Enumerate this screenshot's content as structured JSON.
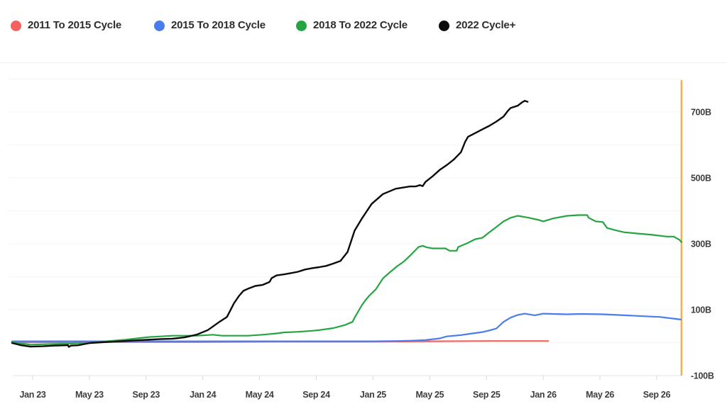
{
  "legend": {
    "position": "top-left",
    "items": [
      {
        "id": "2011-2015",
        "label": "2011 To 2015 Cycle",
        "color": "#f4625d"
      },
      {
        "id": "2015-2018",
        "label": "2015 To 2018 Cycle",
        "color": "#4a7cee"
      },
      {
        "id": "2018-2022",
        "label": "2018 To 2022 Cycle",
        "color": "#25a541"
      },
      {
        "id": "2022-plus",
        "label": "2022 Cycle+",
        "color": "#0b0b0b"
      }
    ]
  },
  "colors": {
    "background": "#ffffff",
    "grid": "#f4f4f4",
    "axis_line": "#e3e3e3",
    "tick_mark": "#d9d9d9",
    "separator": "#ededed",
    "tick_text": "#3d3d3d",
    "legend_text": "#2d2d2d",
    "right_marker_line": "#f8ac52"
  },
  "chart_data": {
    "type": "line",
    "title": "",
    "legend_position": "top",
    "grid": "horizontal-only",
    "x_axis": {
      "unit": "months since Jan 2023",
      "range": [
        -1.45,
        45.75
      ],
      "tick_labels": [
        {
          "t": 0,
          "label": "Jan 23"
        },
        {
          "t": 4,
          "label": "May 23"
        },
        {
          "t": 8,
          "label": "Sep 23"
        },
        {
          "t": 12,
          "label": "Jan 24"
        },
        {
          "t": 16,
          "label": "May 24"
        },
        {
          "t": 20,
          "label": "Sep 24"
        },
        {
          "t": 24,
          "label": "Jan 25"
        },
        {
          "t": 28,
          "label": "May 25"
        },
        {
          "t": 32,
          "label": "Sep 25"
        },
        {
          "t": 36,
          "label": "Jan 26"
        },
        {
          "t": 40,
          "label": "May 26"
        },
        {
          "t": 44,
          "label": "Sep 26"
        }
      ]
    },
    "y_axis": {
      "side": "right",
      "unit": "billions (B)",
      "range": [
        -105,
        843
      ],
      "gridline_values": [
        800,
        700,
        600,
        500,
        400,
        300,
        200,
        100,
        0
      ],
      "tick_labels": [
        {
          "v": 700,
          "label": "700B"
        },
        {
          "v": 500,
          "label": "500B"
        },
        {
          "v": 300,
          "label": "300B"
        },
        {
          "v": 100,
          "label": "100B"
        },
        {
          "v": -100,
          "label": "-100B"
        }
      ]
    },
    "right_marker_line": {
      "t": 45.75,
      "color": "#f8ac52"
    },
    "series": [
      {
        "id": "2011-2015",
        "name": "2011 To 2015 Cycle",
        "color": "#f4625d",
        "points": [
          [
            -1.45,
            0
          ],
          [
            0,
            1
          ],
          [
            6,
            2
          ],
          [
            12,
            2
          ],
          [
            18,
            3
          ],
          [
            24,
            3
          ],
          [
            28,
            4
          ],
          [
            32,
            5
          ],
          [
            36.35,
            5
          ]
        ]
      },
      {
        "id": "2015-2018",
        "name": "2015 To 2018 Cycle",
        "color": "#4a7cee",
        "points": [
          [
            -1.45,
            4
          ],
          [
            4,
            4
          ],
          [
            10,
            4
          ],
          [
            16,
            4
          ],
          [
            20,
            4
          ],
          [
            24,
            4
          ],
          [
            25.7,
            5
          ],
          [
            26.7,
            6
          ],
          [
            27.7,
            8
          ],
          [
            28.7,
            13
          ],
          [
            29.2,
            19
          ],
          [
            30.2,
            23
          ],
          [
            30.7,
            26
          ],
          [
            31.7,
            32
          ],
          [
            32.2,
            37
          ],
          [
            32.7,
            43
          ],
          [
            33.2,
            63
          ],
          [
            33.7,
            76
          ],
          [
            34.2,
            84
          ],
          [
            34.7,
            88
          ],
          [
            35.4,
            83
          ],
          [
            36,
            88
          ],
          [
            36.7,
            87
          ],
          [
            37.7,
            86
          ],
          [
            38.7,
            87
          ],
          [
            40.2,
            86
          ],
          [
            41.2,
            84
          ],
          [
            42.7,
            81
          ],
          [
            43.7,
            79
          ],
          [
            44.2,
            78
          ],
          [
            45.2,
            73
          ],
          [
            45.7,
            70
          ]
        ]
      },
      {
        "id": "2018-2022",
        "name": "2018 To 2022 Cycle",
        "color": "#25a541",
        "points": [
          [
            -1.45,
            1
          ],
          [
            -0.8,
            -3
          ],
          [
            -0.15,
            -6
          ],
          [
            0.7,
            -5
          ],
          [
            1.55,
            -4
          ],
          [
            2.7,
            -3
          ],
          [
            3.2,
            -2
          ],
          [
            4.05,
            -1
          ],
          [
            4.85,
            3
          ],
          [
            5.7,
            6
          ],
          [
            6.55,
            9
          ],
          [
            7.35,
            13
          ],
          [
            8.2,
            17
          ],
          [
            9.05,
            19
          ],
          [
            9.85,
            21
          ],
          [
            11.55,
            21
          ],
          [
            12.35,
            23
          ],
          [
            12.7,
            24
          ],
          [
            13.35,
            21
          ],
          [
            14.2,
            21
          ],
          [
            15.2,
            21
          ],
          [
            16.2,
            24
          ],
          [
            17.2,
            28
          ],
          [
            17.7,
            31
          ],
          [
            18.7,
            33
          ],
          [
            19.7,
            36
          ],
          [
            20.2,
            38
          ],
          [
            21.2,
            44
          ],
          [
            22.05,
            54
          ],
          [
            22.55,
            63
          ],
          [
            22.7,
            76
          ],
          [
            23.2,
            113
          ],
          [
            23.45,
            128
          ],
          [
            23.7,
            141
          ],
          [
            24.2,
            162
          ],
          [
            24.7,
            195
          ],
          [
            25.2,
            214
          ],
          [
            25.7,
            232
          ],
          [
            26.2,
            247
          ],
          [
            26.7,
            268
          ],
          [
            27.2,
            290
          ],
          [
            27.5,
            294
          ],
          [
            27.8,
            289
          ],
          [
            28.2,
            286
          ],
          [
            29.1,
            286
          ],
          [
            29.4,
            279
          ],
          [
            29.9,
            279
          ],
          [
            30,
            290
          ],
          [
            30.7,
            303
          ],
          [
            31.2,
            314
          ],
          [
            31.7,
            318
          ],
          [
            32.2,
            335
          ],
          [
            32.7,
            351
          ],
          [
            33.2,
            368
          ],
          [
            33.7,
            379
          ],
          [
            34.2,
            385
          ],
          [
            35,
            379
          ],
          [
            35.7,
            372
          ],
          [
            36,
            368
          ],
          [
            36.7,
            377
          ],
          [
            37.7,
            385
          ],
          [
            38.5,
            387
          ],
          [
            39.1,
            387
          ],
          [
            39.2,
            379
          ],
          [
            39.7,
            368
          ],
          [
            40.2,
            366
          ],
          [
            40.5,
            348
          ],
          [
            41.2,
            340
          ],
          [
            41.7,
            335
          ],
          [
            42.7,
            331
          ],
          [
            43.7,
            327
          ],
          [
            44.7,
            322
          ],
          [
            45.2,
            322
          ],
          [
            45.6,
            312
          ],
          [
            45.75,
            305
          ]
        ]
      },
      {
        "id": "2022-plus",
        "name": "2022 Cycle+",
        "color": "#0b0b0b",
        "points": [
          [
            -1.45,
            -1
          ],
          [
            -0.8,
            -8
          ],
          [
            -0.15,
            -12
          ],
          [
            0.7,
            -11
          ],
          [
            1.55,
            -9
          ],
          [
            2.35,
            -8
          ],
          [
            2.5,
            -8
          ],
          [
            2.55,
            -13
          ],
          [
            2.7,
            -9
          ],
          [
            3.2,
            -8
          ],
          [
            4.05,
            -1
          ],
          [
            4.85,
            1
          ],
          [
            5.7,
            3
          ],
          [
            6.55,
            5
          ],
          [
            7.35,
            7
          ],
          [
            8.2,
            9
          ],
          [
            9.05,
            11
          ],
          [
            9.85,
            12
          ],
          [
            10.7,
            16
          ],
          [
            11.55,
            24
          ],
          [
            12.35,
            38
          ],
          [
            13.2,
            64
          ],
          [
            13.7,
            78
          ],
          [
            14.2,
            120
          ],
          [
            14.55,
            142
          ],
          [
            14.85,
            157
          ],
          [
            15.2,
            164
          ],
          [
            15.7,
            172
          ],
          [
            16.2,
            175
          ],
          [
            16.7,
            184
          ],
          [
            16.85,
            196
          ],
          [
            17.2,
            204
          ],
          [
            17.7,
            207
          ],
          [
            18.2,
            211
          ],
          [
            18.7,
            215
          ],
          [
            19.2,
            222
          ],
          [
            19.7,
            226
          ],
          [
            20.2,
            229
          ],
          [
            20.7,
            233
          ],
          [
            21.2,
            240
          ],
          [
            21.7,
            248
          ],
          [
            22.2,
            275
          ],
          [
            22.7,
            340
          ],
          [
            23.2,
            376
          ],
          [
            23.9,
            421
          ],
          [
            24.7,
            451
          ],
          [
            25.6,
            467
          ],
          [
            26.6,
            474
          ],
          [
            27,
            474
          ],
          [
            27.3,
            478
          ],
          [
            27.5,
            475
          ],
          [
            27.7,
            488
          ],
          [
            28.2,
            505
          ],
          [
            28.7,
            524
          ],
          [
            29.2,
            539
          ],
          [
            29.7,
            556
          ],
          [
            30.2,
            578
          ],
          [
            30.5,
            610
          ],
          [
            30.7,
            625
          ],
          [
            31.2,
            636
          ],
          [
            31.7,
            647
          ],
          [
            32.2,
            658
          ],
          [
            32.7,
            671
          ],
          [
            33.2,
            686
          ],
          [
            33.5,
            703
          ],
          [
            33.7,
            712
          ],
          [
            34.2,
            719
          ],
          [
            34.5,
            729
          ],
          [
            34.7,
            734
          ],
          [
            34.9,
            731
          ]
        ]
      }
    ]
  }
}
